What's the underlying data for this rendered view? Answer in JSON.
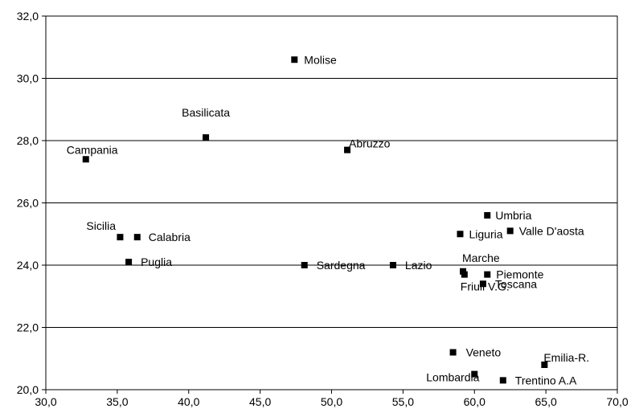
{
  "chart_data": {
    "type": "scatter",
    "title": "",
    "xlabel": "",
    "ylabel": "",
    "xlim": [
      30,
      70
    ],
    "ylim": [
      20,
      32
    ],
    "xticks": [
      "30,0",
      "35,0",
      "40,0",
      "45,0",
      "50,0",
      "55,0",
      "60,0",
      "65,0",
      "70,0"
    ],
    "yticks": [
      "20,0",
      "22,0",
      "24,0",
      "26,0",
      "28,0",
      "30,0",
      "32,0"
    ],
    "grid": "horizontal",
    "marker": "square",
    "marker_color": "#000000",
    "points": [
      {
        "label": "Molise",
        "x": 47.4,
        "y": 30.6
      },
      {
        "label": "Basilicata",
        "x": 41.2,
        "y": 28.1
      },
      {
        "label": "Abruzzo",
        "x": 51.1,
        "y": 27.7
      },
      {
        "label": "Campania",
        "x": 32.8,
        "y": 27.4
      },
      {
        "label": "Umbria",
        "x": 60.9,
        "y": 25.6
      },
      {
        "label": "Valle D'aosta",
        "x": 62.5,
        "y": 25.1
      },
      {
        "label": "Liguria",
        "x": 59.0,
        "y": 25.0
      },
      {
        "label": "Sicilia",
        "x": 35.2,
        "y": 24.9
      },
      {
        "label": "Calabria",
        "x": 36.4,
        "y": 24.9
      },
      {
        "label": "Puglia",
        "x": 35.8,
        "y": 24.1
      },
      {
        "label": "Sardegna",
        "x": 48.1,
        "y": 24.0
      },
      {
        "label": "Lazio",
        "x": 54.3,
        "y": 24.0
      },
      {
        "label": "Marche",
        "x": 59.2,
        "y": 23.8
      },
      {
        "label": "Friuli V.G.",
        "x": 59.3,
        "y": 23.7
      },
      {
        "label": "Piemonte",
        "x": 60.9,
        "y": 23.7
      },
      {
        "label": "Toscana",
        "x": 60.6,
        "y": 23.4
      },
      {
        "label": "Veneto",
        "x": 58.5,
        "y": 21.2
      },
      {
        "label": "Emilia-R.",
        "x": 64.9,
        "y": 20.8
      },
      {
        "label": "Lombardia",
        "x": 60.0,
        "y": 20.5
      },
      {
        "label": "Trentino A.A",
        "x": 62.0,
        "y": 20.3
      }
    ]
  }
}
